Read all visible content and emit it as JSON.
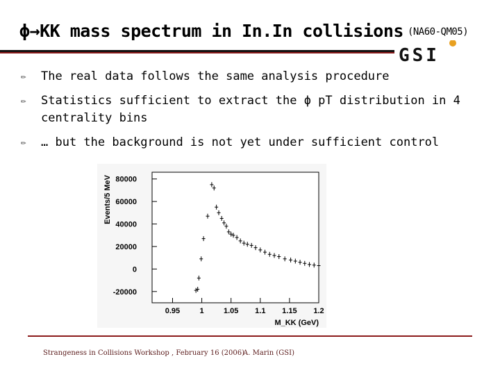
{
  "title": {
    "main": "ϕ→KK mass spectrum in In.In collisions",
    "sub": "(NA60-QM05)"
  },
  "logo": {
    "text": "GSI",
    "dot_color": "#e8a020"
  },
  "bullets": [
    {
      "icon": "pencil-icon",
      "text": "The real data follows the same analysis procedure"
    },
    {
      "icon": "pencil-icon",
      "text": "Statistics sufficient to extract the ϕ pT distribution in 4 centrality bins"
    },
    {
      "icon": "pencil-icon",
      "text": "… but the background is not yet under sufficient control"
    }
  ],
  "chart_data": {
    "type": "scatter",
    "xlabel": "M_KK (GeV)",
    "ylabel": "Events/5 MeV",
    "xlim": [
      0.915,
      1.2
    ],
    "ylim": [
      -30000,
      86000
    ],
    "x_ticks": [
      0.95,
      1,
      1.05,
      1.1,
      1.15,
      1.2
    ],
    "x_tick_labels": [
      "0.95",
      "1",
      "1.05",
      "1.1",
      "1.15",
      "1.2"
    ],
    "y_ticks": [
      -20000,
      0,
      20000,
      40000,
      60000,
      80000
    ],
    "y_tick_labels": [
      "-20000",
      "0",
      "20000",
      "40000",
      "60000",
      "80000"
    ],
    "series": [
      {
        "x": [
          0.99,
          0.993,
          0.995,
          0.999,
          1.003,
          1.01,
          1.017,
          1.021,
          1.025,
          1.029,
          1.034,
          1.038,
          1.042,
          1.046,
          1.05,
          1.054,
          1.06,
          1.066,
          1.072,
          1.078,
          1.085,
          1.092,
          1.1,
          1.108,
          1.116,
          1.124,
          1.132,
          1.142,
          1.152,
          1.16,
          1.168,
          1.176,
          1.184,
          1.192,
          1.2
        ],
        "y": [
          -19000,
          -18000,
          -8000,
          9000,
          27000,
          47000,
          75000,
          72000,
          55000,
          50000,
          45000,
          41000,
          38000,
          33000,
          31000,
          30000,
          28000,
          25000,
          23000,
          22000,
          21000,
          19000,
          17000,
          15000,
          13000,
          12000,
          11000,
          9000,
          8000,
          7000,
          6000,
          5000,
          4000,
          3500,
          3000
        ]
      }
    ]
  },
  "footer": {
    "left": "Strangeness in Collisions Workshop , February 16 (2006)",
    "right": "A. Marin (GSI)"
  }
}
